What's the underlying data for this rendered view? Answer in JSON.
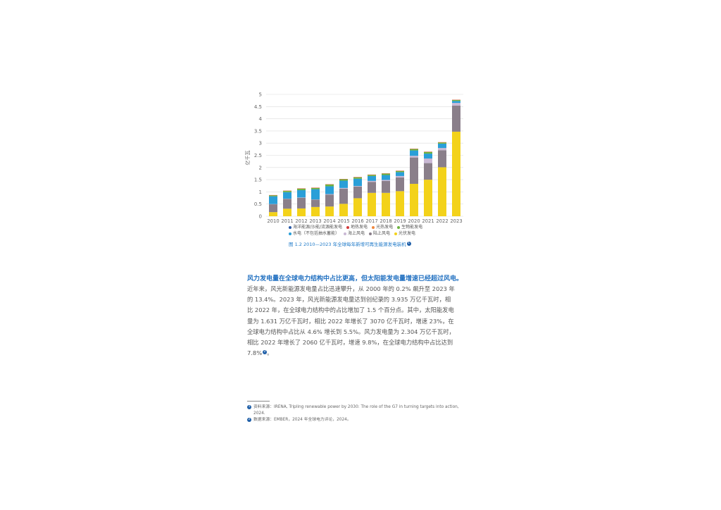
{
  "figure": {
    "caption": "图 1.2   2010—2023 年全球每年新增可再生能源发电装机",
    "caption_note": "1"
  },
  "chart_data": {
    "type": "bar",
    "stacked": true,
    "ylabel": "亿千瓦",
    "ylim": [
      0,
      5
    ],
    "yticks": [
      "0",
      "0.5",
      "1",
      "1.5",
      "2",
      "2.5",
      "3",
      "3.5",
      "4",
      "4.5",
      "5"
    ],
    "grid": true,
    "legend_position": "bottom",
    "categories": [
      "2010",
      "2011",
      "2012",
      "2013",
      "2014",
      "2015",
      "2016",
      "2017",
      "2018",
      "2019",
      "2020",
      "2021",
      "2022",
      "2023"
    ],
    "series": [
      {
        "name": "光伏发电",
        "color": "#f3d21a",
        "values": [
          0.17,
          0.31,
          0.32,
          0.38,
          0.4,
          0.51,
          0.74,
          0.96,
          0.96,
          1.03,
          1.33,
          1.5,
          2.01,
          3.47
        ]
      },
      {
        "name": "陆上风电",
        "color": "#8a7f8a",
        "values": [
          0.32,
          0.4,
          0.44,
          0.3,
          0.49,
          0.62,
          0.48,
          0.45,
          0.49,
          0.56,
          1.08,
          0.68,
          0.7,
          1.07
        ]
      },
      {
        "name": "海上风电",
        "color": "#c9b8d4",
        "values": [
          0.01,
          0.01,
          0.01,
          0.01,
          0.02,
          0.03,
          0.02,
          0.04,
          0.04,
          0.06,
          0.07,
          0.19,
          0.09,
          0.11
        ]
      },
      {
        "name": "水电（不包括抽水蓄能）",
        "color": "#2a9fd8",
        "values": [
          0.32,
          0.27,
          0.3,
          0.42,
          0.32,
          0.3,
          0.3,
          0.2,
          0.2,
          0.16,
          0.22,
          0.2,
          0.18,
          0.08
        ]
      },
      {
        "name": "生物能发电",
        "color": "#6db33f",
        "values": [
          0.04,
          0.05,
          0.06,
          0.05,
          0.07,
          0.06,
          0.06,
          0.05,
          0.06,
          0.05,
          0.06,
          0.07,
          0.05,
          0.04
        ]
      },
      {
        "name": "光热发电",
        "color": "#f0883e",
        "values": [
          0.005,
          0.005,
          0.01,
          0.01,
          0.01,
          0.005,
          0.005,
          0.005,
          0.005,
          0.005,
          0.005,
          0.005,
          0.005,
          0.005
        ]
      },
      {
        "name": "地热发电",
        "color": "#d23b3b",
        "values": [
          0.005,
          0.005,
          0.005,
          0.005,
          0.005,
          0.005,
          0.005,
          0.005,
          0.005,
          0.005,
          0.005,
          0.005,
          0.005,
          0.005
        ]
      },
      {
        "name": "海洋能源/沙能/流源能发电",
        "color": "#2a5aa8",
        "values": [
          0,
          0,
          0,
          0,
          0,
          0,
          0,
          0,
          0,
          0,
          0,
          0,
          0,
          0
        ]
      }
    ]
  },
  "legend": {
    "rows": [
      [
        {
          "label": "海洋能源/沙能/流源能发电",
          "color": "#2a5aa8"
        },
        {
          "label": "地热发电",
          "color": "#d23b3b"
        },
        {
          "label": "光热发电",
          "color": "#f0883e"
        },
        {
          "label": "生物能发电",
          "color": "#6db33f"
        }
      ],
      [
        {
          "label": "水电（不包括抽水蓄能）",
          "color": "#2a9fd8"
        },
        {
          "label": "海上风电",
          "color": "#c9b8d4"
        },
        {
          "label": "陆上风电",
          "color": "#8a7f8a"
        },
        {
          "label": "光伏发电",
          "color": "#f3d21a"
        }
      ]
    ]
  },
  "article": {
    "heading": "风力发电量在全球电力结构中占比更高，但太阳能发电量增速已经超过风电。",
    "lines": [
      "近年来，风光新能源发电量占比迅速攀升，从 2000 年的 0.2% 飙升至 2023 年",
      "的 13.4%。2023 年，风光新能源发电量达到创纪录的 3.935 万亿千瓦时，相",
      "比 2022 年，在全球电力结构中的占比增加了 1.5 个百分点。其中，太阳能发电",
      "量为 1.631 万亿千瓦时，相比 2022 年增长了 3070 亿千瓦时，增速 23%，在",
      "全球电力结构中占比从 4.6% 增长到 5.5%。风力发电量为 2.304 万亿千瓦时，",
      "相比 2022 年增长了 2060 亿千瓦时，增速 9.8%，在全球电力结构中占比达到",
      "7.8%"
    ],
    "last_note": "2"
  },
  "footnotes": [
    {
      "num": "1",
      "lines": [
        "资料来源：IRENA, Tripling renewable power by 2030: The role of the G7 in turning targets into action,",
        "2024."
      ]
    },
    {
      "num": "2",
      "lines": [
        "数据来源：EMBER，2024 年全球电力评论，2024。"
      ]
    }
  ]
}
